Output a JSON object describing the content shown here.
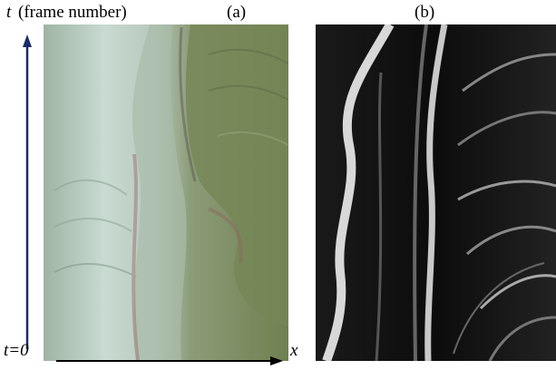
{
  "labels": {
    "t_symbol": "t",
    "t_description": "(frame number)",
    "panel_a": "(a)",
    "panel_b": "(b)",
    "t_origin": "t=0",
    "x_symbol": "x"
  }
}
